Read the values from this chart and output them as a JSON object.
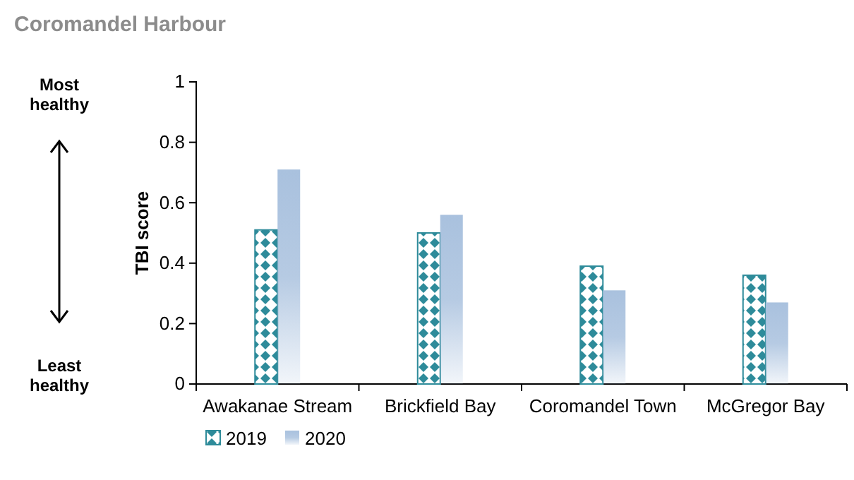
{
  "chart_data": {
    "type": "bar",
    "title": "Coromandel Harbour",
    "ylabel": "TBI score",
    "categories": [
      "Awakanae Stream",
      "Brickfield Bay",
      "Coromandel Town",
      "McGregor Bay"
    ],
    "series": [
      {
        "name": "2019",
        "color": "#2e8b9a",
        "values": [
          0.51,
          0.5,
          0.39,
          0.36
        ]
      },
      {
        "name": "2020",
        "color": "#a9c1de",
        "values": [
          0.71,
          0.56,
          0.31,
          0.27
        ]
      }
    ],
    "ylim": [
      0,
      1
    ],
    "yticks": [
      0,
      0.2,
      0.4,
      0.6,
      0.8,
      1
    ],
    "grid": false,
    "legend": "bottom left",
    "annotations": [
      "Most healthy",
      "Least healthy"
    ]
  }
}
